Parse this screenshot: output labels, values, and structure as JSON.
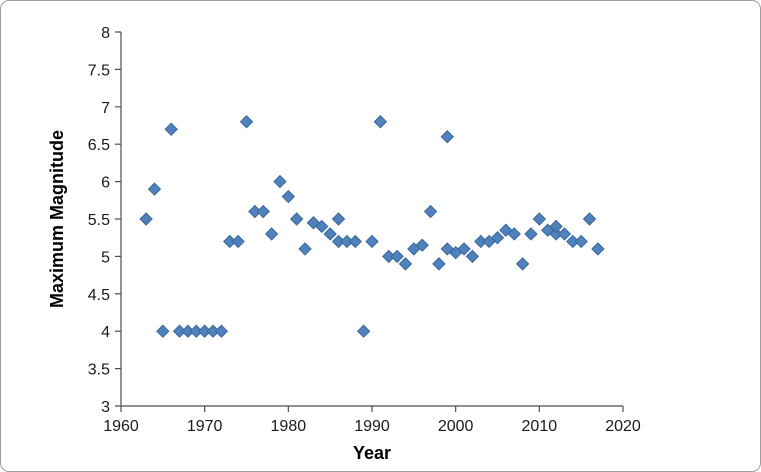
{
  "chart_data": {
    "type": "scatter",
    "title": "",
    "xlabel": "Year",
    "ylabel": "Maximum Magnitude",
    "xlim": [
      1960,
      2020
    ],
    "ylim": [
      3,
      8
    ],
    "xticks": [
      1960,
      1970,
      1980,
      1990,
      2000,
      2010,
      2020
    ],
    "yticks": [
      3,
      3.5,
      4,
      4.5,
      5,
      5.5,
      6,
      6.5,
      7,
      7.5,
      8
    ],
    "grid": false,
    "legend": "none",
    "marker": {
      "shape": "diamond",
      "fill": "#4F81BD",
      "stroke": "#3A679C",
      "size": 12
    },
    "axis_color": "#4d4d4d",
    "text_color": "#1a1a1a",
    "points": [
      [
        1963,
        5.5
      ],
      [
        1964,
        5.9
      ],
      [
        1965,
        4.0
      ],
      [
        1966,
        6.7
      ],
      [
        1967,
        4.0
      ],
      [
        1968,
        4.0
      ],
      [
        1969,
        4.0
      ],
      [
        1970,
        4.0
      ],
      [
        1971,
        4.0
      ],
      [
        1972,
        4.0
      ],
      [
        1973,
        5.2
      ],
      [
        1974,
        5.2
      ],
      [
        1975,
        6.8
      ],
      [
        1976,
        5.6
      ],
      [
        1977,
        5.6
      ],
      [
        1978,
        5.3
      ],
      [
        1979,
        6.0
      ],
      [
        1980,
        5.8
      ],
      [
        1981,
        5.5
      ],
      [
        1982,
        5.1
      ],
      [
        1983,
        5.45
      ],
      [
        1984,
        5.4
      ],
      [
        1985,
        5.3
      ],
      [
        1986,
        5.5
      ],
      [
        1986,
        5.2
      ],
      [
        1987,
        5.2
      ],
      [
        1988,
        5.2
      ],
      [
        1989,
        4.0
      ],
      [
        1990,
        5.2
      ],
      [
        1991,
        6.8
      ],
      [
        1992,
        5.0
      ],
      [
        1993,
        5.0
      ],
      [
        1994,
        4.9
      ],
      [
        1995,
        5.1
      ],
      [
        1996,
        5.15
      ],
      [
        1997,
        5.6
      ],
      [
        1998,
        4.9
      ],
      [
        1999,
        6.6
      ],
      [
        1999,
        5.1
      ],
      [
        2000,
        5.05
      ],
      [
        2001,
        5.1
      ],
      [
        2002,
        5.0
      ],
      [
        2003,
        5.2
      ],
      [
        2004,
        5.2
      ],
      [
        2005,
        5.25
      ],
      [
        2006,
        5.35
      ],
      [
        2007,
        5.3
      ],
      [
        2008,
        4.9
      ],
      [
        2009,
        5.3
      ],
      [
        2010,
        5.5
      ],
      [
        2011,
        5.35
      ],
      [
        2012,
        5.3
      ],
      [
        2012,
        5.4
      ],
      [
        2013,
        5.3
      ],
      [
        2014,
        5.2
      ],
      [
        2015,
        5.2
      ],
      [
        2016,
        5.5
      ],
      [
        2017,
        5.1
      ]
    ]
  }
}
